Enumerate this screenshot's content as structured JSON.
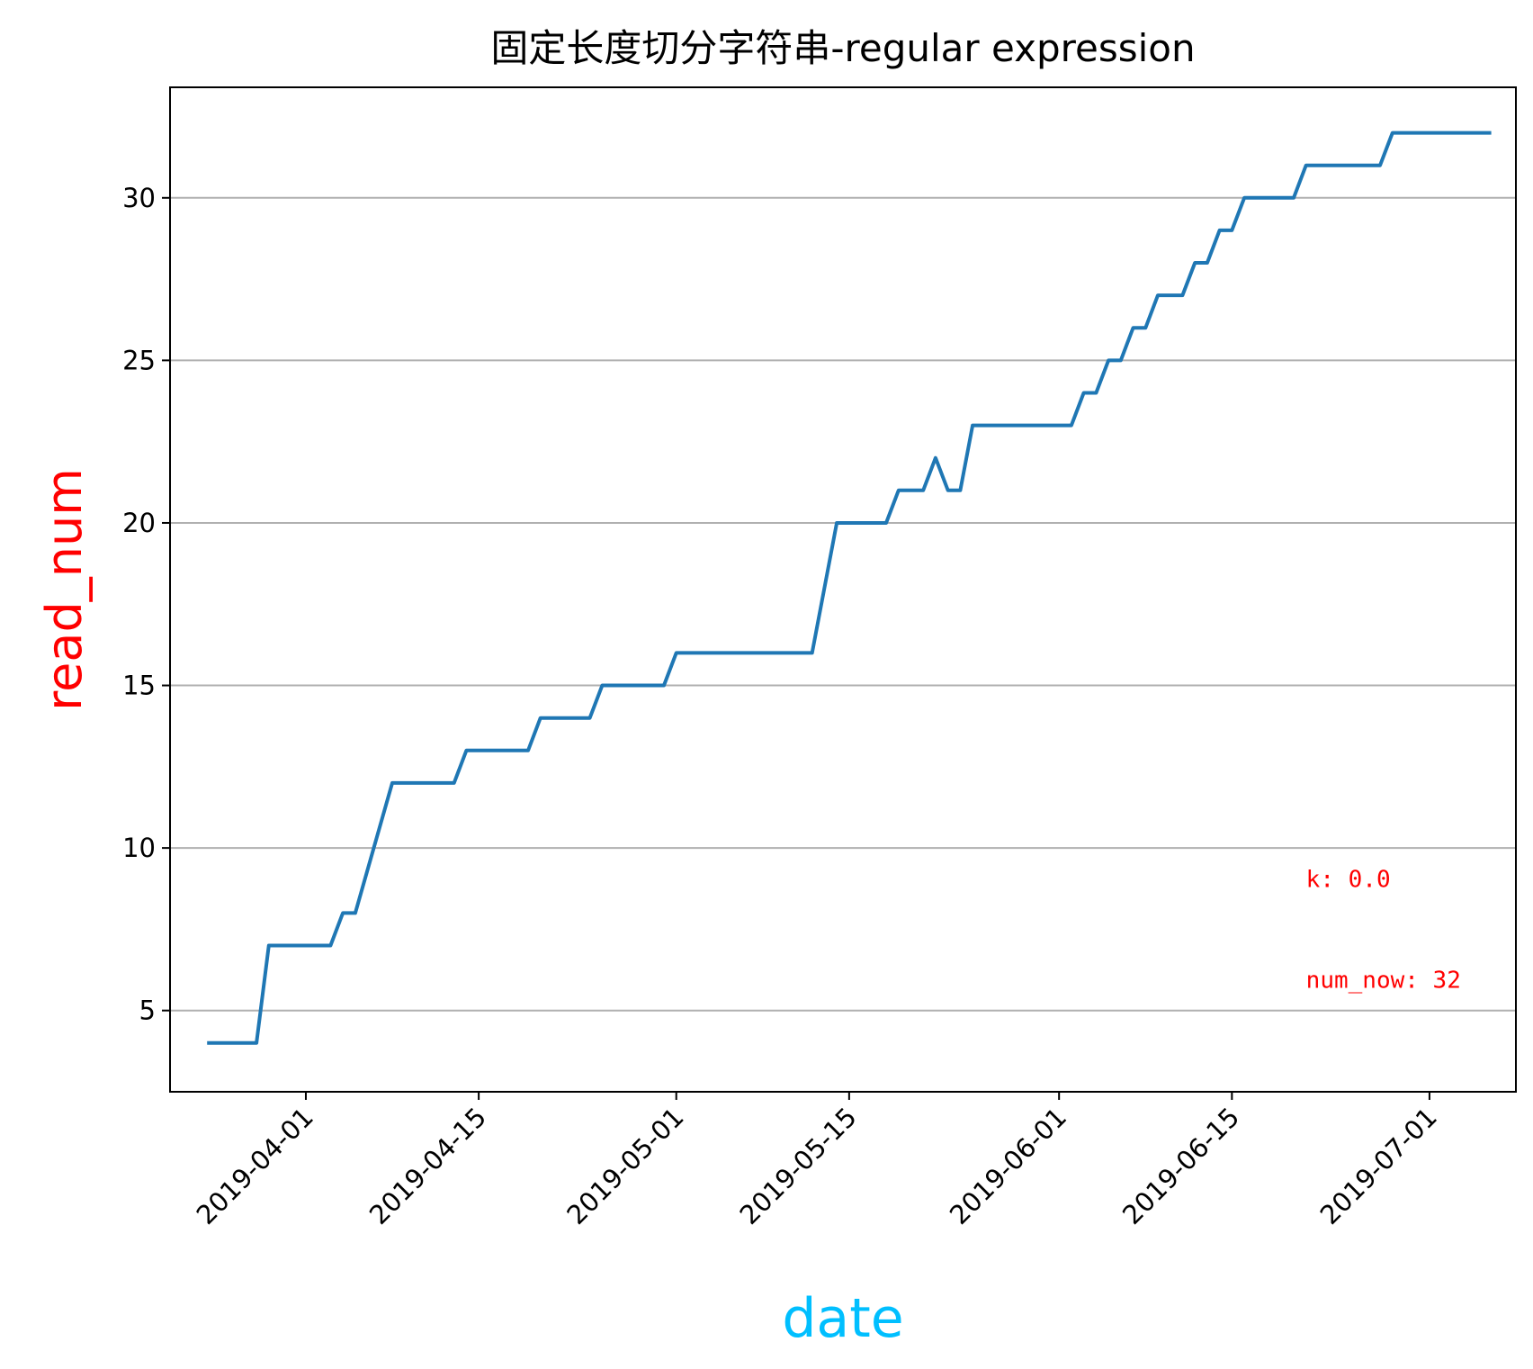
{
  "chart_data": {
    "type": "line",
    "title": "固定长度切分字符串-regular expression",
    "xlabel": "date",
    "ylabel": "read_num",
    "xlabel_color": "#00bfff",
    "ylabel_color": "#ff0000",
    "series_color": "#1f77b4",
    "grid": "y-axis only",
    "x_range": [
      "2019-03-21",
      "2019-07-08"
    ],
    "ylim": [
      2.5,
      33.4
    ],
    "x_ticks": [
      "2019-04-01",
      "2019-04-15",
      "2019-05-01",
      "2019-05-15",
      "2019-06-01",
      "2019-06-15",
      "2019-07-01"
    ],
    "y_ticks": [
      5,
      10,
      15,
      20,
      25,
      30
    ],
    "series": [
      {
        "x": [
          "2019-03-24",
          "2019-03-28",
          "2019-03-29",
          "2019-04-03",
          "2019-04-04",
          "2019-04-05",
          "2019-04-08",
          "2019-04-13",
          "2019-04-14",
          "2019-04-19",
          "2019-04-20",
          "2019-04-24",
          "2019-04-25",
          "2019-04-30",
          "2019-05-01",
          "2019-05-12",
          "2019-05-14",
          "2019-05-18",
          "2019-05-19",
          "2019-05-21",
          "2019-05-22",
          "2019-05-23",
          "2019-05-24",
          "2019-05-25",
          "2019-06-02",
          "2019-06-03",
          "2019-06-04",
          "2019-06-05",
          "2019-06-06",
          "2019-06-07",
          "2019-06-08",
          "2019-06-09",
          "2019-06-11",
          "2019-06-12",
          "2019-06-13",
          "2019-06-14",
          "2019-06-15",
          "2019-06-16",
          "2019-06-20",
          "2019-06-21",
          "2019-06-27",
          "2019-06-28",
          "2019-07-06"
        ],
        "values": [
          4,
          4,
          7,
          7,
          8,
          8,
          12,
          12,
          13,
          13,
          14,
          14,
          15,
          15,
          16,
          16,
          20,
          20,
          21,
          21,
          22,
          21,
          21,
          23,
          23,
          24,
          24,
          25,
          25,
          26,
          26,
          27,
          27,
          28,
          28,
          29,
          29,
          30,
          30,
          31,
          31,
          32,
          32
        ]
      }
    ],
    "annotations": [
      {
        "text": "k: 0.0",
        "x": "2019-06-21",
        "y": 8.8,
        "color": "#ff0000"
      },
      {
        "text": "num_now: 32",
        "x": "2019-06-21",
        "y": 5.7,
        "color": "#ff0000"
      }
    ]
  }
}
